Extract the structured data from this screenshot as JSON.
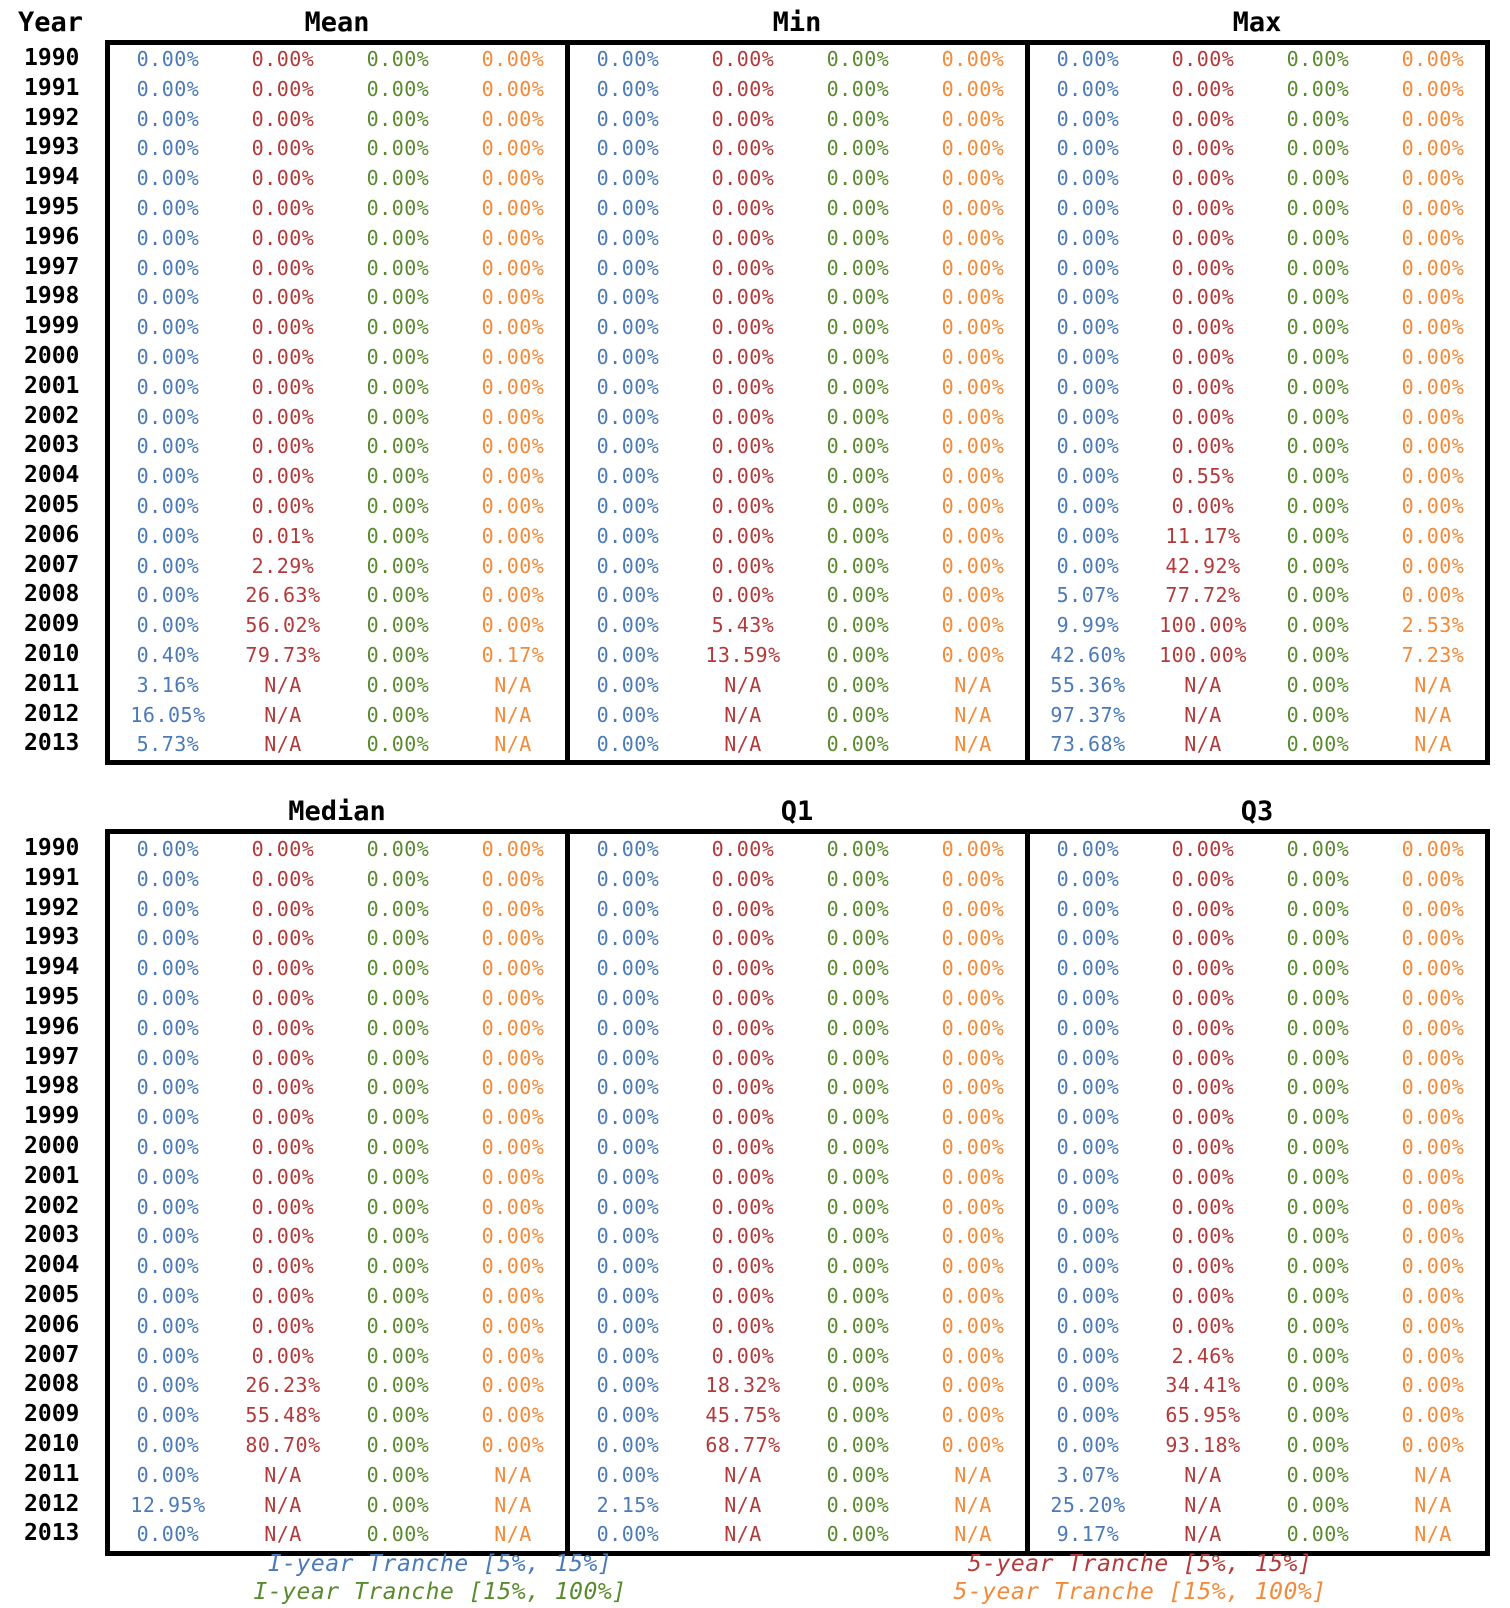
{
  "year_header": "Year",
  "years": [
    "1990",
    "1991",
    "1992",
    "1993",
    "1994",
    "1995",
    "1996",
    "1997",
    "1998",
    "1999",
    "2000",
    "2001",
    "2002",
    "2003",
    "2004",
    "2005",
    "2006",
    "2007",
    "2008",
    "2009",
    "2010",
    "2011",
    "2012",
    "2013"
  ],
  "colors": {
    "s1": "#4a7ab8",
    "s2": "#b23a3a",
    "s3": "#5a8a2e",
    "s4": "#f28a3a"
  },
  "legend": {
    "left": [
      "I-year Tranche [5%, 15%]",
      "I-year Tranche [15%, 100%]"
    ],
    "right": [
      "5-year Tranche [5%, 15%]",
      "5-year Tranche [15%, 100%]"
    ]
  },
  "panels": [
    {
      "title": "Mean",
      "cols": [
        [
          "0.00%",
          "0.00%",
          "0.00%",
          "0.00%",
          "0.00%",
          "0.00%",
          "0.00%",
          "0.00%",
          "0.00%",
          "0.00%",
          "0.00%",
          "0.00%",
          "0.00%",
          "0.00%",
          "0.00%",
          "0.00%",
          "0.00%",
          "0.00%",
          "0.00%",
          "0.00%",
          "0.40%",
          "3.16%",
          "16.05%",
          "5.73%"
        ],
        [
          "0.00%",
          "0.00%",
          "0.00%",
          "0.00%",
          "0.00%",
          "0.00%",
          "0.00%",
          "0.00%",
          "0.00%",
          "0.00%",
          "0.00%",
          "0.00%",
          "0.00%",
          "0.00%",
          "0.00%",
          "0.00%",
          "0.01%",
          "2.29%",
          "26.63%",
          "56.02%",
          "79.73%",
          "N/A",
          "N/A",
          "N/A"
        ],
        [
          "0.00%",
          "0.00%",
          "0.00%",
          "0.00%",
          "0.00%",
          "0.00%",
          "0.00%",
          "0.00%",
          "0.00%",
          "0.00%",
          "0.00%",
          "0.00%",
          "0.00%",
          "0.00%",
          "0.00%",
          "0.00%",
          "0.00%",
          "0.00%",
          "0.00%",
          "0.00%",
          "0.00%",
          "0.00%",
          "0.00%",
          "0.00%"
        ],
        [
          "0.00%",
          "0.00%",
          "0.00%",
          "0.00%",
          "0.00%",
          "0.00%",
          "0.00%",
          "0.00%",
          "0.00%",
          "0.00%",
          "0.00%",
          "0.00%",
          "0.00%",
          "0.00%",
          "0.00%",
          "0.00%",
          "0.00%",
          "0.00%",
          "0.00%",
          "0.00%",
          "0.17%",
          "N/A",
          "N/A",
          "N/A"
        ]
      ]
    },
    {
      "title": "Min",
      "cols": [
        [
          "0.00%",
          "0.00%",
          "0.00%",
          "0.00%",
          "0.00%",
          "0.00%",
          "0.00%",
          "0.00%",
          "0.00%",
          "0.00%",
          "0.00%",
          "0.00%",
          "0.00%",
          "0.00%",
          "0.00%",
          "0.00%",
          "0.00%",
          "0.00%",
          "0.00%",
          "0.00%",
          "0.00%",
          "0.00%",
          "0.00%",
          "0.00%"
        ],
        [
          "0.00%",
          "0.00%",
          "0.00%",
          "0.00%",
          "0.00%",
          "0.00%",
          "0.00%",
          "0.00%",
          "0.00%",
          "0.00%",
          "0.00%",
          "0.00%",
          "0.00%",
          "0.00%",
          "0.00%",
          "0.00%",
          "0.00%",
          "0.00%",
          "0.00%",
          "5.43%",
          "13.59%",
          "N/A",
          "N/A",
          "N/A"
        ],
        [
          "0.00%",
          "0.00%",
          "0.00%",
          "0.00%",
          "0.00%",
          "0.00%",
          "0.00%",
          "0.00%",
          "0.00%",
          "0.00%",
          "0.00%",
          "0.00%",
          "0.00%",
          "0.00%",
          "0.00%",
          "0.00%",
          "0.00%",
          "0.00%",
          "0.00%",
          "0.00%",
          "0.00%",
          "0.00%",
          "0.00%",
          "0.00%"
        ],
        [
          "0.00%",
          "0.00%",
          "0.00%",
          "0.00%",
          "0.00%",
          "0.00%",
          "0.00%",
          "0.00%",
          "0.00%",
          "0.00%",
          "0.00%",
          "0.00%",
          "0.00%",
          "0.00%",
          "0.00%",
          "0.00%",
          "0.00%",
          "0.00%",
          "0.00%",
          "0.00%",
          "0.00%",
          "N/A",
          "N/A",
          "N/A"
        ]
      ]
    },
    {
      "title": "Max",
      "cols": [
        [
          "0.00%",
          "0.00%",
          "0.00%",
          "0.00%",
          "0.00%",
          "0.00%",
          "0.00%",
          "0.00%",
          "0.00%",
          "0.00%",
          "0.00%",
          "0.00%",
          "0.00%",
          "0.00%",
          "0.00%",
          "0.00%",
          "0.00%",
          "0.00%",
          "5.07%",
          "9.99%",
          "42.60%",
          "55.36%",
          "97.37%",
          "73.68%"
        ],
        [
          "0.00%",
          "0.00%",
          "0.00%",
          "0.00%",
          "0.00%",
          "0.00%",
          "0.00%",
          "0.00%",
          "0.00%",
          "0.00%",
          "0.00%",
          "0.00%",
          "0.00%",
          "0.00%",
          "0.55%",
          "0.00%",
          "11.17%",
          "42.92%",
          "77.72%",
          "100.00%",
          "100.00%",
          "N/A",
          "N/A",
          "N/A"
        ],
        [
          "0.00%",
          "0.00%",
          "0.00%",
          "0.00%",
          "0.00%",
          "0.00%",
          "0.00%",
          "0.00%",
          "0.00%",
          "0.00%",
          "0.00%",
          "0.00%",
          "0.00%",
          "0.00%",
          "0.00%",
          "0.00%",
          "0.00%",
          "0.00%",
          "0.00%",
          "0.00%",
          "0.00%",
          "0.00%",
          "0.00%",
          "0.00%"
        ],
        [
          "0.00%",
          "0.00%",
          "0.00%",
          "0.00%",
          "0.00%",
          "0.00%",
          "0.00%",
          "0.00%",
          "0.00%",
          "0.00%",
          "0.00%",
          "0.00%",
          "0.00%",
          "0.00%",
          "0.00%",
          "0.00%",
          "0.00%",
          "0.00%",
          "0.00%",
          "2.53%",
          "7.23%",
          "N/A",
          "N/A",
          "N/A"
        ]
      ]
    },
    {
      "title": "Median",
      "cols": [
        [
          "0.00%",
          "0.00%",
          "0.00%",
          "0.00%",
          "0.00%",
          "0.00%",
          "0.00%",
          "0.00%",
          "0.00%",
          "0.00%",
          "0.00%",
          "0.00%",
          "0.00%",
          "0.00%",
          "0.00%",
          "0.00%",
          "0.00%",
          "0.00%",
          "0.00%",
          "0.00%",
          "0.00%",
          "0.00%",
          "12.95%",
          "0.00%"
        ],
        [
          "0.00%",
          "0.00%",
          "0.00%",
          "0.00%",
          "0.00%",
          "0.00%",
          "0.00%",
          "0.00%",
          "0.00%",
          "0.00%",
          "0.00%",
          "0.00%",
          "0.00%",
          "0.00%",
          "0.00%",
          "0.00%",
          "0.00%",
          "0.00%",
          "26.23%",
          "55.48%",
          "80.70%",
          "N/A",
          "N/A",
          "N/A"
        ],
        [
          "0.00%",
          "0.00%",
          "0.00%",
          "0.00%",
          "0.00%",
          "0.00%",
          "0.00%",
          "0.00%",
          "0.00%",
          "0.00%",
          "0.00%",
          "0.00%",
          "0.00%",
          "0.00%",
          "0.00%",
          "0.00%",
          "0.00%",
          "0.00%",
          "0.00%",
          "0.00%",
          "0.00%",
          "0.00%",
          "0.00%",
          "0.00%"
        ],
        [
          "0.00%",
          "0.00%",
          "0.00%",
          "0.00%",
          "0.00%",
          "0.00%",
          "0.00%",
          "0.00%",
          "0.00%",
          "0.00%",
          "0.00%",
          "0.00%",
          "0.00%",
          "0.00%",
          "0.00%",
          "0.00%",
          "0.00%",
          "0.00%",
          "0.00%",
          "0.00%",
          "0.00%",
          "N/A",
          "N/A",
          "N/A"
        ]
      ]
    },
    {
      "title": "Q1",
      "cols": [
        [
          "0.00%",
          "0.00%",
          "0.00%",
          "0.00%",
          "0.00%",
          "0.00%",
          "0.00%",
          "0.00%",
          "0.00%",
          "0.00%",
          "0.00%",
          "0.00%",
          "0.00%",
          "0.00%",
          "0.00%",
          "0.00%",
          "0.00%",
          "0.00%",
          "0.00%",
          "0.00%",
          "0.00%",
          "0.00%",
          "2.15%",
          "0.00%"
        ],
        [
          "0.00%",
          "0.00%",
          "0.00%",
          "0.00%",
          "0.00%",
          "0.00%",
          "0.00%",
          "0.00%",
          "0.00%",
          "0.00%",
          "0.00%",
          "0.00%",
          "0.00%",
          "0.00%",
          "0.00%",
          "0.00%",
          "0.00%",
          "0.00%",
          "18.32%",
          "45.75%",
          "68.77%",
          "N/A",
          "N/A",
          "N/A"
        ],
        [
          "0.00%",
          "0.00%",
          "0.00%",
          "0.00%",
          "0.00%",
          "0.00%",
          "0.00%",
          "0.00%",
          "0.00%",
          "0.00%",
          "0.00%",
          "0.00%",
          "0.00%",
          "0.00%",
          "0.00%",
          "0.00%",
          "0.00%",
          "0.00%",
          "0.00%",
          "0.00%",
          "0.00%",
          "0.00%",
          "0.00%",
          "0.00%"
        ],
        [
          "0.00%",
          "0.00%",
          "0.00%",
          "0.00%",
          "0.00%",
          "0.00%",
          "0.00%",
          "0.00%",
          "0.00%",
          "0.00%",
          "0.00%",
          "0.00%",
          "0.00%",
          "0.00%",
          "0.00%",
          "0.00%",
          "0.00%",
          "0.00%",
          "0.00%",
          "0.00%",
          "0.00%",
          "N/A",
          "N/A",
          "N/A"
        ]
      ]
    },
    {
      "title": "Q3",
      "cols": [
        [
          "0.00%",
          "0.00%",
          "0.00%",
          "0.00%",
          "0.00%",
          "0.00%",
          "0.00%",
          "0.00%",
          "0.00%",
          "0.00%",
          "0.00%",
          "0.00%",
          "0.00%",
          "0.00%",
          "0.00%",
          "0.00%",
          "0.00%",
          "0.00%",
          "0.00%",
          "0.00%",
          "0.00%",
          "3.07%",
          "25.20%",
          "9.17%"
        ],
        [
          "0.00%",
          "0.00%",
          "0.00%",
          "0.00%",
          "0.00%",
          "0.00%",
          "0.00%",
          "0.00%",
          "0.00%",
          "0.00%",
          "0.00%",
          "0.00%",
          "0.00%",
          "0.00%",
          "0.00%",
          "0.00%",
          "0.00%",
          "2.46%",
          "34.41%",
          "65.95%",
          "93.18%",
          "N/A",
          "N/A",
          "N/A"
        ],
        [
          "0.00%",
          "0.00%",
          "0.00%",
          "0.00%",
          "0.00%",
          "0.00%",
          "0.00%",
          "0.00%",
          "0.00%",
          "0.00%",
          "0.00%",
          "0.00%",
          "0.00%",
          "0.00%",
          "0.00%",
          "0.00%",
          "0.00%",
          "0.00%",
          "0.00%",
          "0.00%",
          "0.00%",
          "0.00%",
          "0.00%",
          "0.00%"
        ],
        [
          "0.00%",
          "0.00%",
          "0.00%",
          "0.00%",
          "0.00%",
          "0.00%",
          "0.00%",
          "0.00%",
          "0.00%",
          "0.00%",
          "0.00%",
          "0.00%",
          "0.00%",
          "0.00%",
          "0.00%",
          "0.00%",
          "0.00%",
          "0.00%",
          "0.00%",
          "0.00%",
          "0.00%",
          "N/A",
          "N/A",
          "N/A"
        ]
      ]
    }
  ]
}
